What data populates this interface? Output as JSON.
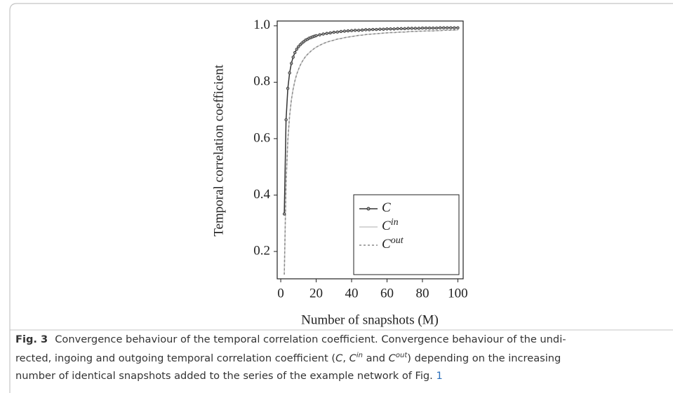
{
  "chart_data": {
    "type": "line",
    "x_label": "Number of snapshots (M)",
    "y_label": "Temporal correlation coefficient",
    "x": [
      2,
      3,
      4,
      5,
      6,
      7,
      8,
      9,
      10,
      11,
      12,
      13,
      14,
      15,
      16,
      17,
      18,
      19,
      20,
      22,
      24,
      26,
      28,
      30,
      32,
      34,
      36,
      38,
      40,
      42,
      44,
      46,
      48,
      50,
      52,
      54,
      56,
      58,
      60,
      62,
      64,
      66,
      68,
      70,
      72,
      74,
      76,
      78,
      80,
      82,
      84,
      86,
      88,
      90,
      92,
      94,
      96,
      98,
      100
    ],
    "series": [
      {
        "name": "C",
        "name_superscript": null,
        "color": "#333333",
        "line_style": "solid",
        "markers": true,
        "values": [
          0.333,
          0.667,
          0.778,
          0.833,
          0.867,
          0.889,
          0.905,
          0.917,
          0.926,
          0.933,
          0.939,
          0.944,
          0.949,
          0.952,
          0.956,
          0.958,
          0.961,
          0.963,
          0.965,
          0.968,
          0.971,
          0.973,
          0.975,
          0.977,
          0.978,
          0.98,
          0.981,
          0.982,
          0.983,
          0.984,
          0.984,
          0.985,
          0.986,
          0.986,
          0.987,
          0.987,
          0.988,
          0.988,
          0.989,
          0.989,
          0.989,
          0.99,
          0.99,
          0.99,
          0.991,
          0.991,
          0.991,
          0.991,
          0.992,
          0.992,
          0.992,
          0.992,
          0.992,
          0.993,
          0.993,
          0.993,
          0.993,
          0.993,
          0.993
        ]
      },
      {
        "name": "C",
        "name_superscript": "in",
        "color": "#c8c8c8",
        "line_style": "solid",
        "markers": false,
        "values": [
          0.118,
          0.444,
          0.595,
          0.681,
          0.737,
          0.776,
          0.805,
          0.828,
          0.845,
          0.86,
          0.872,
          0.882,
          0.891,
          0.898,
          0.904,
          0.91,
          0.915,
          0.92,
          0.924,
          0.931,
          0.937,
          0.942,
          0.946,
          0.949,
          0.953,
          0.955,
          0.958,
          0.96,
          0.962,
          0.964,
          0.966,
          0.967,
          0.969,
          0.97,
          0.971,
          0.972,
          0.973,
          0.974,
          0.975,
          0.976,
          0.976,
          0.977,
          0.978,
          0.978,
          0.979,
          0.98,
          0.98,
          0.981,
          0.981,
          0.982,
          0.982,
          0.982,
          0.983,
          0.983,
          0.984,
          0.984,
          0.984,
          0.985,
          0.985
        ]
      },
      {
        "name": "C",
        "name_superscript": "out",
        "color": "#8a8a8a",
        "line_style": "dashed",
        "markers": false,
        "values": [
          0.118,
          0.444,
          0.595,
          0.681,
          0.737,
          0.776,
          0.805,
          0.828,
          0.845,
          0.86,
          0.872,
          0.882,
          0.891,
          0.898,
          0.904,
          0.91,
          0.915,
          0.92,
          0.924,
          0.931,
          0.937,
          0.942,
          0.946,
          0.949,
          0.953,
          0.955,
          0.958,
          0.96,
          0.962,
          0.964,
          0.966,
          0.967,
          0.969,
          0.97,
          0.971,
          0.972,
          0.973,
          0.974,
          0.975,
          0.976,
          0.976,
          0.977,
          0.978,
          0.978,
          0.979,
          0.98,
          0.98,
          0.981,
          0.981,
          0.982,
          0.982,
          0.982,
          0.983,
          0.983,
          0.984,
          0.984,
          0.984,
          0.985,
          0.985
        ]
      }
    ],
    "xlim": [
      -2,
      103
    ],
    "ylim": [
      0.103,
      1.017
    ],
    "xticks": [
      0,
      20,
      40,
      60,
      80,
      100
    ],
    "yticks": [
      {
        "value": 0.2,
        "label": "0.2"
      },
      {
        "value": 0.4,
        "label": "0.4"
      },
      {
        "value": 0.6,
        "label": "0.6"
      },
      {
        "value": 0.8,
        "label": "0.8"
      },
      {
        "value": 1.0,
        "label": "1.0"
      }
    ],
    "legend": "lower right",
    "grid": false
  },
  "caption": {
    "label": "Fig. 3",
    "line1": "Convergence behaviour of the temporal correlation coefficient. Convergence behaviour of the undi-",
    "line2": [
      "rected, ingoing and outgoing temporal correlation coefficient (",
      "C",
      ", ",
      "C",
      "in",
      " and ",
      "C",
      "out",
      ") depending on the increasing"
    ],
    "line3": [
      "number of identical snapshots added to the series of the example network of Fig. ",
      "1"
    ]
  }
}
